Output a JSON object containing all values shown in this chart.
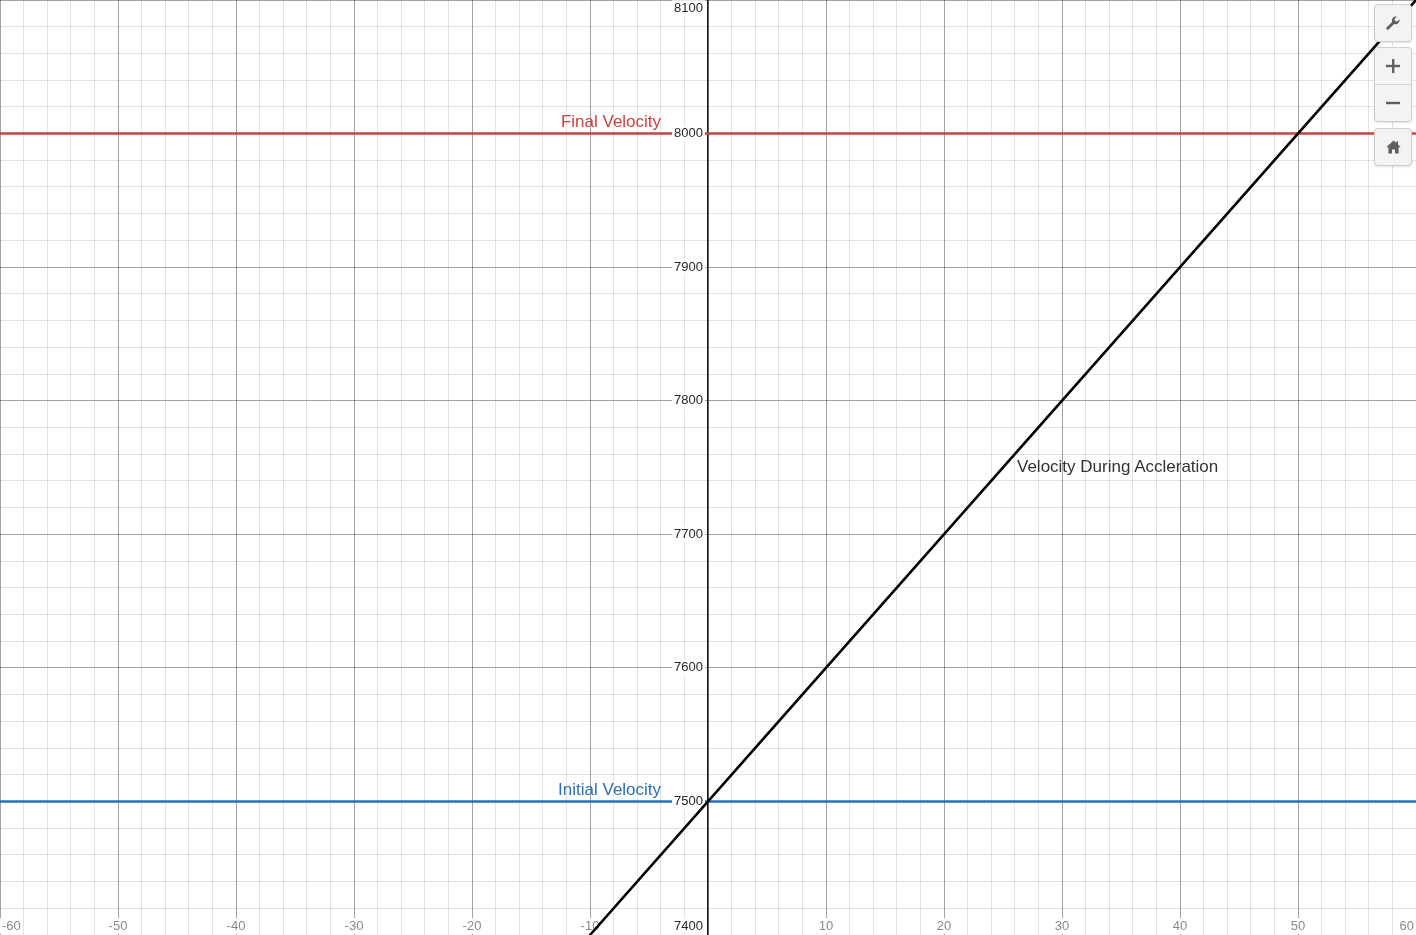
{
  "chart_data": {
    "type": "line",
    "series": [
      {
        "name": "Velocity During Accleration",
        "color": "#000000",
        "x": [
          -10,
          60
        ],
        "values": [
          7400,
          8100
        ]
      }
    ],
    "xlim": [
      -60,
      60
    ],
    "ylim": [
      7400,
      8100
    ],
    "xticks": [
      -60,
      {
        "value": -58,
        "label": null
      },
      {
        "value": -56,
        "label": null
      },
      {
        "value": -54,
        "label": null
      },
      {
        "value": -52,
        "label": null
      },
      -50,
      {
        "value": -48,
        "label": null
      },
      {
        "value": -46,
        "label": null
      },
      {
        "value": -44,
        "label": null
      },
      {
        "value": -42,
        "label": null
      },
      -40,
      {
        "value": -38,
        "label": null
      },
      {
        "value": -36,
        "label": null
      },
      {
        "value": -34,
        "label": null
      },
      {
        "value": -32,
        "label": null
      },
      -30,
      {
        "value": -28,
        "label": null
      },
      {
        "value": -26,
        "label": null
      },
      {
        "value": -24,
        "label": null
      },
      {
        "value": -22,
        "label": null
      },
      -20,
      {
        "value": -18,
        "label": null
      },
      {
        "value": -16,
        "label": null
      },
      {
        "value": -14,
        "label": null
      },
      {
        "value": -12,
        "label": null
      },
      -10,
      {
        "value": -8,
        "label": null
      },
      {
        "value": -6,
        "label": null
      },
      {
        "value": -4,
        "label": null
      },
      {
        "value": -2,
        "label": null
      },
      {
        "value": 0,
        "label": null
      },
      {
        "value": 2,
        "label": null
      },
      {
        "value": 4,
        "label": null
      },
      {
        "value": 6,
        "label": null
      },
      {
        "value": 8,
        "label": null
      },
      10,
      {
        "value": 12,
        "label": null
      },
      {
        "value": 14,
        "label": null
      },
      {
        "value": 16,
        "label": null
      },
      {
        "value": 18,
        "label": null
      },
      20,
      {
        "value": 22,
        "label": null
      },
      {
        "value": 24,
        "label": null
      },
      {
        "value": 26,
        "label": null
      },
      {
        "value": 28,
        "label": null
      },
      30,
      {
        "value": 32,
        "label": null
      },
      {
        "value": 34,
        "label": null
      },
      {
        "value": 36,
        "label": null
      },
      {
        "value": 38,
        "label": null
      },
      40,
      {
        "value": 42,
        "label": null
      },
      {
        "value": 44,
        "label": null
      },
      {
        "value": 46,
        "label": null
      },
      {
        "value": 48,
        "label": null
      },
      50,
      {
        "value": 52,
        "label": null
      },
      {
        "value": 54,
        "label": null
      },
      {
        "value": 56,
        "label": null
      },
      {
        "value": 58,
        "label": null
      },
      60
    ],
    "yticks": [
      7400,
      {
        "value": 7420,
        "label": null
      },
      {
        "value": 7440,
        "label": null
      },
      {
        "value": 7460,
        "label": null
      },
      {
        "value": 7480,
        "label": null
      },
      7500,
      {
        "value": 7520,
        "label": null
      },
      {
        "value": 7540,
        "label": null
      },
      {
        "value": 7560,
        "label": null
      },
      {
        "value": 7580,
        "label": null
      },
      7600,
      {
        "value": 7620,
        "label": null
      },
      {
        "value": 7640,
        "label": null
      },
      {
        "value": 7660,
        "label": null
      },
      {
        "value": 7680,
        "label": null
      },
      7700,
      {
        "value": 7720,
        "label": null
      },
      {
        "value": 7740,
        "label": null
      },
      {
        "value": 7760,
        "label": null
      },
      {
        "value": 7780,
        "label": null
      },
      7800,
      {
        "value": 7820,
        "label": null
      },
      {
        "value": 7840,
        "label": null
      },
      {
        "value": 7860,
        "label": null
      },
      {
        "value": 7880,
        "label": null
      },
      7900,
      {
        "value": 7920,
        "label": null
      },
      {
        "value": 7940,
        "label": null
      },
      {
        "value": 7960,
        "label": null
      },
      {
        "value": 7980,
        "label": null
      },
      8000,
      {
        "value": 8020,
        "label": null
      },
      {
        "value": 8040,
        "label": null
      },
      {
        "value": 8060,
        "label": null
      },
      {
        "value": 8080,
        "label": null
      },
      8100
    ],
    "grid": true,
    "marker": "none",
    "ref_lines": [
      {
        "axis": "y",
        "value": 8000,
        "label": "Final Velocity",
        "color": "#c74440"
      },
      {
        "axis": "y",
        "value": 7500,
        "label": "Initial Velocity",
        "color": "#2d70b3"
      }
    ]
  }
}
